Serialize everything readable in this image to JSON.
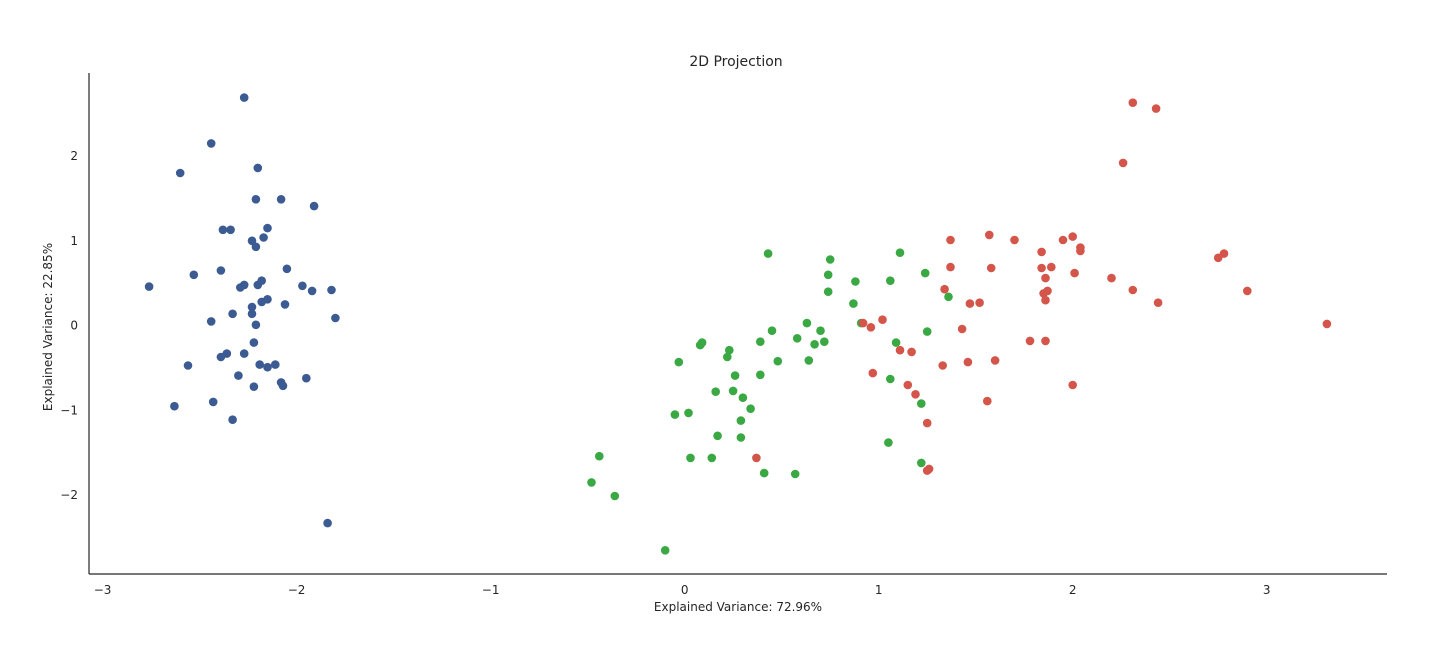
{
  "chart_data": {
    "type": "scatter",
    "title": "2D Projection",
    "xlabel": "Explained Variance: 72.96%",
    "ylabel": "Explained Variance: 22.85%",
    "xlim": [
      -3.07,
      3.62
    ],
    "ylim": [
      -2.93,
      2.98
    ],
    "xticks": [
      -3,
      -2,
      -1,
      0,
      1,
      2,
      3
    ],
    "yticks": [
      -2,
      -1,
      0,
      1,
      2
    ],
    "grid": false,
    "legend": null,
    "series": [
      {
        "color": "#3b5b92",
        "points": [
          [
            -2.27,
            2.69
          ],
          [
            -2.44,
            2.15
          ],
          [
            -2.2,
            1.86
          ],
          [
            -2.6,
            1.8
          ],
          [
            -2.21,
            1.49
          ],
          [
            -2.08,
            1.49
          ],
          [
            -1.91,
            1.41
          ],
          [
            -2.38,
            1.13
          ],
          [
            -2.34,
            1.13
          ],
          [
            -2.15,
            1.15
          ],
          [
            -2.23,
            1.0
          ],
          [
            -2.17,
            1.04
          ],
          [
            -2.21,
            0.93
          ],
          [
            -2.76,
            0.46
          ],
          [
            -2.53,
            0.6
          ],
          [
            -2.39,
            0.65
          ],
          [
            -2.05,
            0.67
          ],
          [
            -2.29,
            0.45
          ],
          [
            -2.27,
            0.48
          ],
          [
            -2.2,
            0.48
          ],
          [
            -2.18,
            0.53
          ],
          [
            -1.97,
            0.47
          ],
          [
            -1.92,
            0.41
          ],
          [
            -1.82,
            0.42
          ],
          [
            -2.15,
            0.31
          ],
          [
            -2.18,
            0.28
          ],
          [
            -2.06,
            0.25
          ],
          [
            -2.23,
            0.22
          ],
          [
            -2.33,
            0.14
          ],
          [
            -2.23,
            0.14
          ],
          [
            -1.8,
            0.09
          ],
          [
            -2.44,
            0.05
          ],
          [
            -2.21,
            0.01
          ],
          [
            -2.22,
            -0.2
          ],
          [
            -2.36,
            -0.33
          ],
          [
            -2.39,
            -0.37
          ],
          [
            -2.27,
            -0.33
          ],
          [
            -2.56,
            -0.47
          ],
          [
            -2.19,
            -0.46
          ],
          [
            -2.15,
            -0.49
          ],
          [
            -2.11,
            -0.46
          ],
          [
            -2.3,
            -0.59
          ],
          [
            -1.95,
            -0.62
          ],
          [
            -2.08,
            -0.67
          ],
          [
            -2.07,
            -0.71
          ],
          [
            -2.22,
            -0.72
          ],
          [
            -2.43,
            -0.9
          ],
          [
            -2.63,
            -0.95
          ],
          [
            -2.33,
            -1.11
          ],
          [
            -1.84,
            -2.33
          ]
        ]
      },
      {
        "color": "#3aa843",
        "points": [
          [
            0.43,
            0.85
          ],
          [
            0.75,
            0.78
          ],
          [
            1.11,
            0.86
          ],
          [
            0.74,
            0.6
          ],
          [
            1.06,
            0.53
          ],
          [
            0.88,
            0.52
          ],
          [
            1.24,
            0.62
          ],
          [
            0.74,
            0.4
          ],
          [
            0.87,
            0.26
          ],
          [
            1.36,
            0.34
          ],
          [
            0.63,
            0.03
          ],
          [
            0.45,
            -0.06
          ],
          [
            0.7,
            -0.06
          ],
          [
            0.91,
            0.03
          ],
          [
            1.25,
            -0.07
          ],
          [
            0.39,
            -0.19
          ],
          [
            0.58,
            -0.15
          ],
          [
            0.67,
            -0.22
          ],
          [
            0.72,
            -0.19
          ],
          [
            0.09,
            -0.2
          ],
          [
            0.08,
            -0.23
          ],
          [
            0.23,
            -0.29
          ],
          [
            0.22,
            -0.37
          ],
          [
            -0.03,
            -0.43
          ],
          [
            0.48,
            -0.42
          ],
          [
            0.64,
            -0.41
          ],
          [
            1.09,
            -0.2
          ],
          [
            0.26,
            -0.59
          ],
          [
            0.39,
            -0.58
          ],
          [
            1.06,
            -0.63
          ],
          [
            0.16,
            -0.78
          ],
          [
            0.25,
            -0.77
          ],
          [
            0.3,
            -0.85
          ],
          [
            0.34,
            -0.98
          ],
          [
            1.22,
            -0.92
          ],
          [
            0.29,
            -1.12
          ],
          [
            -0.05,
            -1.05
          ],
          [
            0.02,
            -1.03
          ],
          [
            0.17,
            -1.3
          ],
          [
            0.29,
            -1.32
          ],
          [
            1.05,
            -1.38
          ],
          [
            -0.44,
            -1.54
          ],
          [
            0.03,
            -1.56
          ],
          [
            0.14,
            -1.56
          ],
          [
            1.22,
            -1.62
          ],
          [
            0.41,
            -1.74
          ],
          [
            0.57,
            -1.75
          ],
          [
            -0.48,
            -1.85
          ],
          [
            -0.36,
            -2.01
          ],
          [
            -0.1,
            -2.65
          ]
        ]
      },
      {
        "color": "#d4564b",
        "points": [
          [
            2.31,
            2.63
          ],
          [
            2.43,
            2.56
          ],
          [
            2.26,
            1.92
          ],
          [
            1.57,
            1.07
          ],
          [
            1.37,
            1.01
          ],
          [
            1.7,
            1.01
          ],
          [
            1.95,
            1.01
          ],
          [
            2.0,
            1.05
          ],
          [
            2.04,
            0.92
          ],
          [
            2.04,
            0.88
          ],
          [
            1.84,
            0.87
          ],
          [
            2.78,
            0.85
          ],
          [
            2.75,
            0.8
          ],
          [
            1.37,
            0.69
          ],
          [
            1.58,
            0.68
          ],
          [
            1.84,
            0.68
          ],
          [
            1.89,
            0.69
          ],
          [
            2.01,
            0.62
          ],
          [
            2.2,
            0.56
          ],
          [
            1.86,
            0.56
          ],
          [
            1.34,
            0.43
          ],
          [
            1.87,
            0.41
          ],
          [
            1.85,
            0.38
          ],
          [
            2.31,
            0.42
          ],
          [
            2.9,
            0.41
          ],
          [
            1.47,
            0.26
          ],
          [
            1.52,
            0.27
          ],
          [
            1.86,
            0.3
          ],
          [
            2.44,
            0.27
          ],
          [
            3.31,
            0.02
          ],
          [
            1.02,
            0.07
          ],
          [
            0.92,
            0.03
          ],
          [
            0.96,
            -0.02
          ],
          [
            1.43,
            -0.04
          ],
          [
            1.78,
            -0.18
          ],
          [
            1.86,
            -0.18
          ],
          [
            1.11,
            -0.29
          ],
          [
            1.17,
            -0.31
          ],
          [
            1.46,
            -0.43
          ],
          [
            1.6,
            -0.41
          ],
          [
            1.33,
            -0.47
          ],
          [
            0.97,
            -0.56
          ],
          [
            1.15,
            -0.7
          ],
          [
            2.0,
            -0.7
          ],
          [
            1.19,
            -0.81
          ],
          [
            1.56,
            -0.89
          ],
          [
            1.25,
            -1.15
          ],
          [
            0.37,
            -1.56
          ],
          [
            1.26,
            -1.69
          ],
          [
            1.25,
            -1.71
          ]
        ]
      }
    ]
  }
}
